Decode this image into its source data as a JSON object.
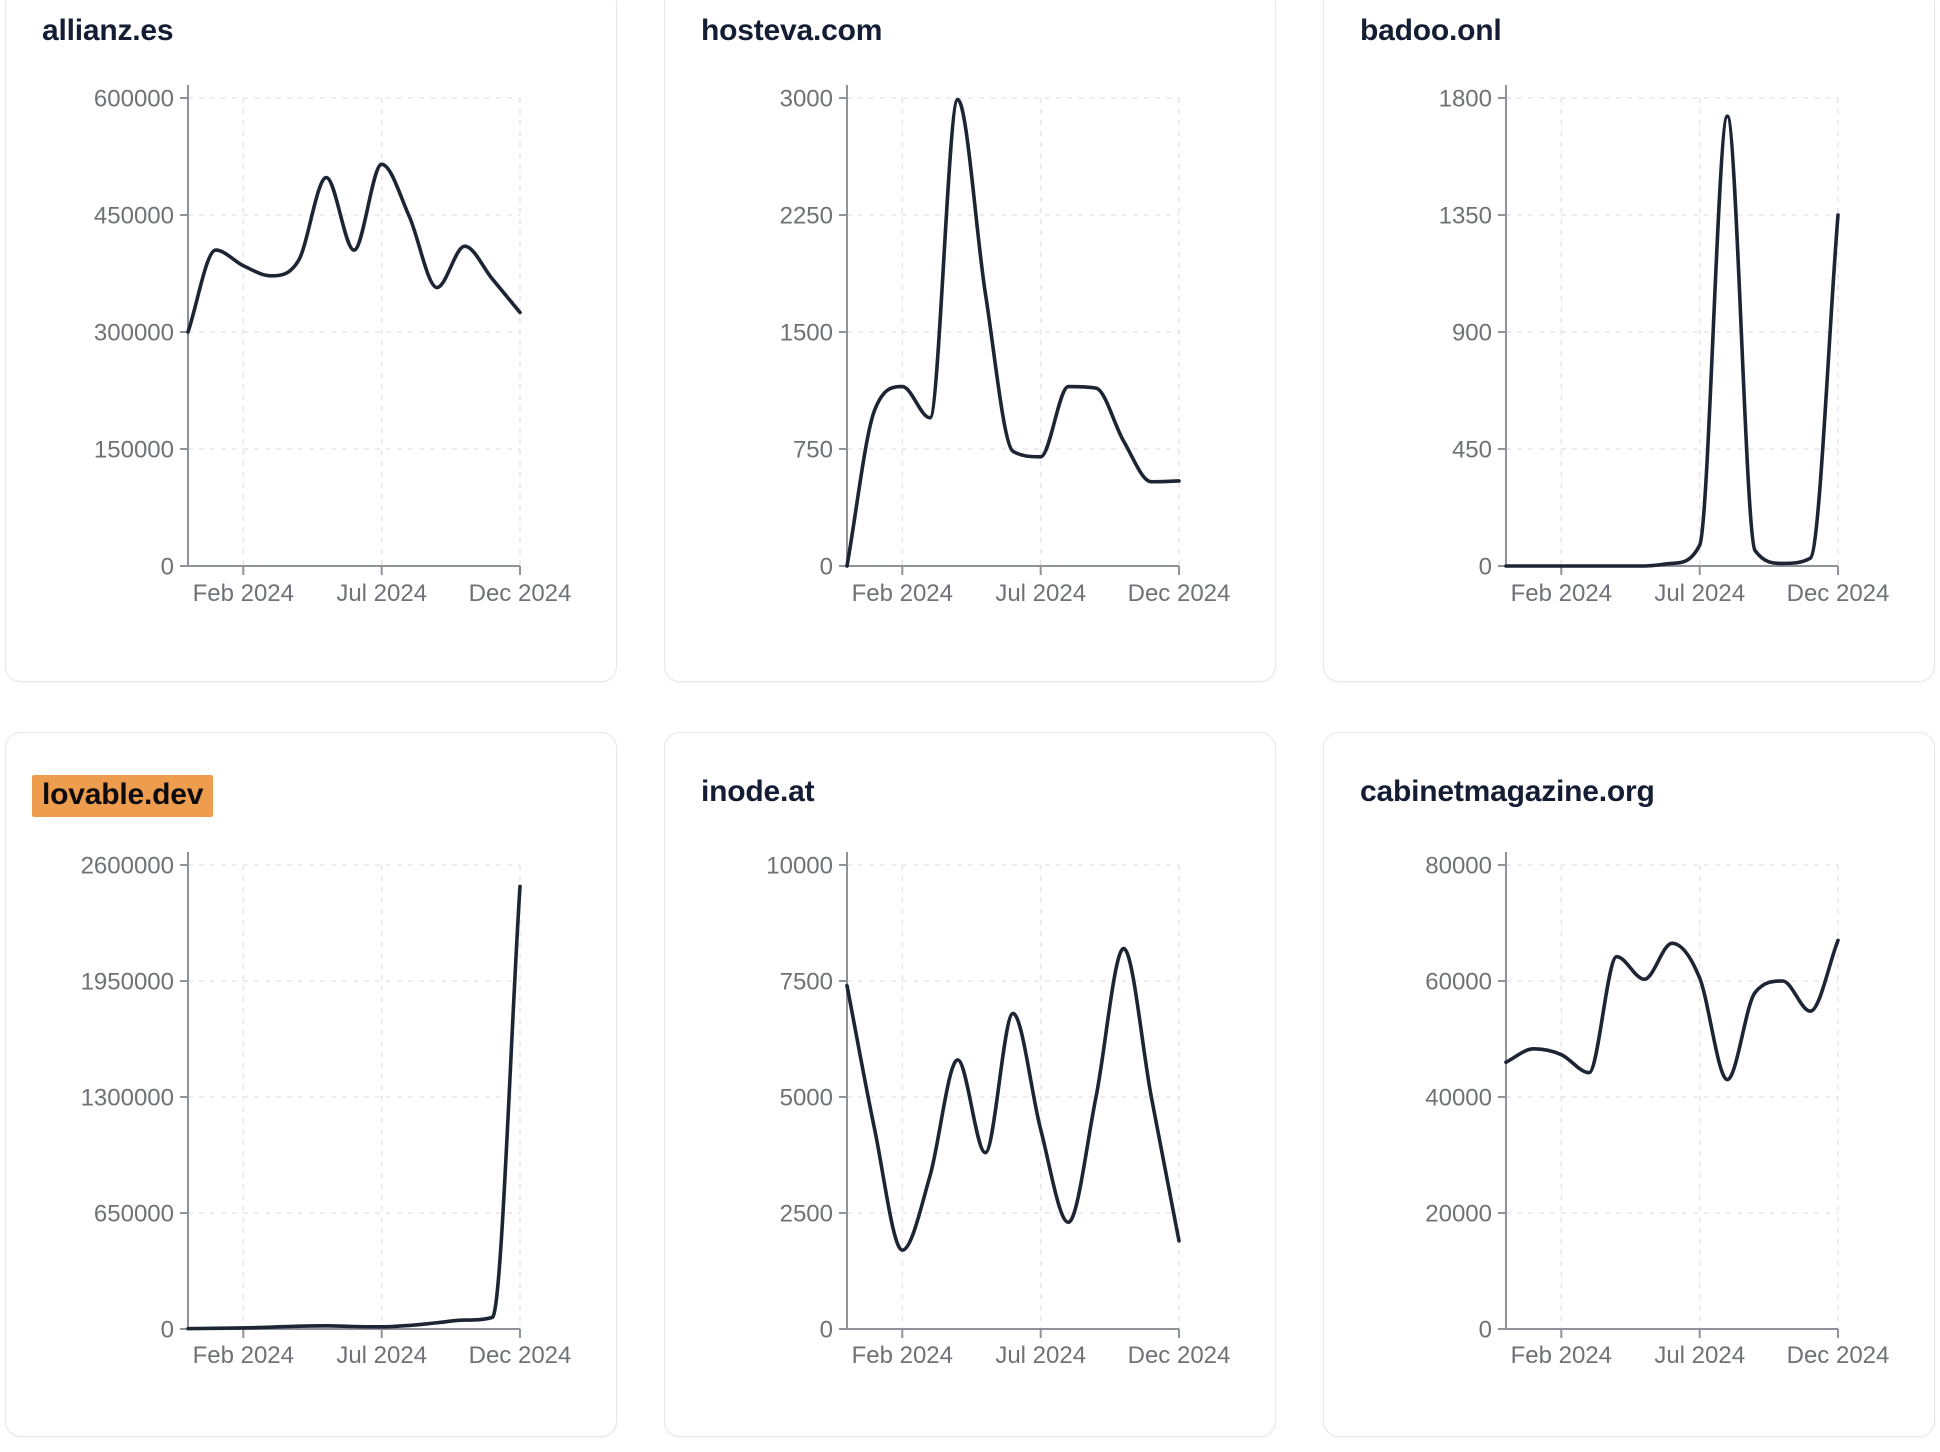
{
  "cards": [
    {
      "title": "allianz.es",
      "highlighted": false
    },
    {
      "title": "hosteva.com",
      "highlighted": false
    },
    {
      "title": "badoo.onl",
      "highlighted": false
    },
    {
      "title": "lovable.dev",
      "highlighted": true
    },
    {
      "title": "inode.at",
      "highlighted": false
    },
    {
      "title": "cabinetmagazine.org",
      "highlighted": false
    }
  ],
  "colors": {
    "line": "#1d2433",
    "title": "#141d33",
    "tick_label": "#6f7177",
    "axis": "#8f9299",
    "gridline": "#e7e7eb",
    "highlight_bg": "#EE9C4E",
    "card_border": "#e6e7ea",
    "card_bg": "#ffffff",
    "page_bg": "#ffffff"
  },
  "chart_data": [
    {
      "type": "line",
      "title": "allianz.es",
      "x": [
        "Dec 2023",
        "Jan 2024",
        "Feb 2024",
        "Mar 2024",
        "Apr 2024",
        "May 2024",
        "Jun 2024",
        "Jul 2024",
        "Aug 2024",
        "Sep 2024",
        "Oct 2024",
        "Nov 2024",
        "Dec 2024"
      ],
      "values": [
        300000,
        405000,
        385000,
        372000,
        392000,
        498000,
        405000,
        515000,
        448000,
        357000,
        410000,
        368000,
        325000
      ],
      "ylim": [
        0,
        600000
      ],
      "y_ticks": [
        0,
        150000,
        300000,
        450000,
        600000
      ],
      "x_ticks": [
        {
          "label": "Feb 2024",
          "i": 2
        },
        {
          "label": "Jul 2024",
          "i": 7
        },
        {
          "label": "Dec 2024",
          "i": 12
        }
      ],
      "grid": true,
      "legend": "none"
    },
    {
      "type": "line",
      "title": "hosteva.com",
      "x": [
        "Dec 2023",
        "Jan 2024",
        "Feb 2024",
        "Mar 2024",
        "Apr 2024",
        "May 2024",
        "Jun 2024",
        "Jul 2024",
        "Aug 2024",
        "Sep 2024",
        "Oct 2024",
        "Nov 2024",
        "Dec 2024"
      ],
      "values": [
        0,
        1000,
        1150,
        950,
        2990,
        1750,
        735,
        700,
        1150,
        1140,
        800,
        540,
        545
      ],
      "ylim": [
        0,
        3000
      ],
      "y_ticks": [
        0,
        750,
        1500,
        2250,
        3000
      ],
      "x_ticks": [
        {
          "label": "Feb 2024",
          "i": 2
        },
        {
          "label": "Jul 2024",
          "i": 7
        },
        {
          "label": "Dec 2024",
          "i": 12
        }
      ],
      "grid": true,
      "legend": "none"
    },
    {
      "type": "line",
      "title": "badoo.onl",
      "x": [
        "Dec 2023",
        "Jan 2024",
        "Feb 2024",
        "Mar 2024",
        "Apr 2024",
        "May 2024",
        "Jun 2024",
        "Jul 2024",
        "Aug 2024",
        "Sep 2024",
        "Oct 2024",
        "Nov 2024",
        "Dec 2024"
      ],
      "values": [
        0,
        0,
        0,
        0,
        0,
        0,
        10,
        80,
        1730,
        60,
        10,
        30,
        1350
      ],
      "ylim": [
        0,
        1800
      ],
      "y_ticks": [
        0,
        450,
        900,
        1350,
        1800
      ],
      "x_ticks": [
        {
          "label": "Feb 2024",
          "i": 2
        },
        {
          "label": "Jul 2024",
          "i": 7
        },
        {
          "label": "Dec 2024",
          "i": 12
        }
      ],
      "grid": true,
      "legend": "none"
    },
    {
      "type": "line",
      "title": "lovable.dev",
      "x": [
        "Dec 2023",
        "Jan 2024",
        "Feb 2024",
        "Mar 2024",
        "Apr 2024",
        "May 2024",
        "Jun 2024",
        "Jul 2024",
        "Aug 2024",
        "Sep 2024",
        "Oct 2024",
        "Nov 2024",
        "Dec 2024"
      ],
      "values": [
        2000,
        4000,
        6000,
        10000,
        16000,
        18000,
        14000,
        12000,
        20000,
        35000,
        50000,
        65000,
        2480000
      ],
      "ylim": [
        0,
        2600000
      ],
      "y_ticks": [
        0,
        650000,
        1300000,
        1950000,
        2600000
      ],
      "x_ticks": [
        {
          "label": "Feb 2024",
          "i": 2
        },
        {
          "label": "Jul 2024",
          "i": 7
        },
        {
          "label": "Dec 2024",
          "i": 12
        }
      ],
      "grid": true,
      "legend": "none"
    },
    {
      "type": "line",
      "title": "inode.at",
      "x": [
        "Dec 2023",
        "Jan 2024",
        "Feb 2024",
        "Mar 2024",
        "Apr 2024",
        "May 2024",
        "Jun 2024",
        "Jul 2024",
        "Aug 2024",
        "Sep 2024",
        "Oct 2024",
        "Nov 2024",
        "Dec 2024"
      ],
      "values": [
        7400,
        4300,
        1700,
        3300,
        5800,
        3800,
        6800,
        4300,
        2300,
        5000,
        8200,
        5000,
        1900
      ],
      "ylim": [
        0,
        10000
      ],
      "y_ticks": [
        0,
        2500,
        5000,
        7500,
        10000
      ],
      "x_ticks": [
        {
          "label": "Feb 2024",
          "i": 2
        },
        {
          "label": "Jul 2024",
          "i": 7
        },
        {
          "label": "Dec 2024",
          "i": 12
        }
      ],
      "grid": true,
      "legend": "none"
    },
    {
      "type": "line",
      "title": "cabinetmagazine.org",
      "x": [
        "Dec 2023",
        "Jan 2024",
        "Feb 2024",
        "Mar 2024",
        "Apr 2024",
        "May 2024",
        "Jun 2024",
        "Jul 2024",
        "Aug 2024",
        "Sep 2024",
        "Oct 2024",
        "Nov 2024",
        "Dec 2024"
      ],
      "values": [
        46000,
        48300,
        47300,
        44200,
        64200,
        60300,
        66500,
        60500,
        43000,
        58000,
        60000,
        54800,
        67000
      ],
      "ylim": [
        0,
        80000
      ],
      "y_ticks": [
        0,
        20000,
        40000,
        60000,
        80000
      ],
      "x_ticks": [
        {
          "label": "Feb 2024",
          "i": 2
        },
        {
          "label": "Jul 2024",
          "i": 7
        },
        {
          "label": "Dec 2024",
          "i": 12
        }
      ],
      "grid": true,
      "legend": "none"
    }
  ]
}
